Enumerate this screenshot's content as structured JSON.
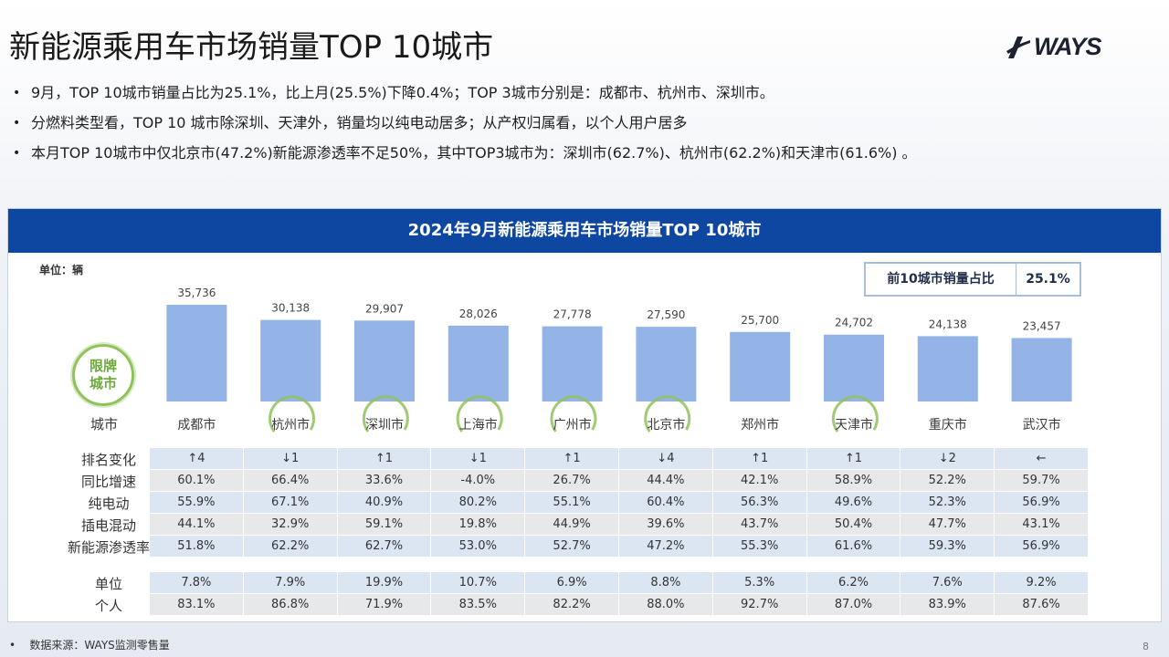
{
  "title": "新能源乘用车市场销量TOP 10城市",
  "logo": {
    "text": "WAYS"
  },
  "bullets": [
    "9月，TOP 10城市销量占比为25.1%，比上月(25.5%)下降0.4%；TOP 3城市分别是：成都市、杭州市、深圳市。",
    "分燃料类型看，TOP 10 城市除深圳、天津外，销量均以纯电动居多；从产权归属看，以个人用户居多",
    "本月TOP 10城市中仅北京市(47.2%)新能源渗透率不足50%，其中TOP3城市为：深圳市(62.7%)、杭州市(62.2%)和天津市(61.6%) 。"
  ],
  "panel": {
    "header": "2024年9月新能源乘用车市场销量TOP  10城市",
    "unit": "单位：辆",
    "ratio_label": "前10城市销量占比",
    "ratio_value": "25.1%",
    "restrict_label_line1": "限牌",
    "restrict_label_line2": "城市"
  },
  "chart_data": {
    "type": "bar",
    "categories": [
      "成都市",
      "杭州市",
      "深圳市",
      "上海市",
      "广州市",
      "北京市",
      "郑州市",
      "天津市",
      "重庆市",
      "武汉市"
    ],
    "values": [
      35736,
      30138,
      29907,
      28026,
      27778,
      27590,
      25700,
      24702,
      24138,
      23457
    ],
    "value_labels": [
      "35,736",
      "30,138",
      "29,907",
      "28,026",
      "27,778",
      "27,590",
      "25,700",
      "24,702",
      "24,138",
      "23,457"
    ],
    "restricted": [
      false,
      true,
      true,
      true,
      true,
      true,
      false,
      true,
      false,
      false
    ],
    "bar_color": "#94b4e8",
    "category_axis_label": "城市"
  },
  "table": {
    "rows": [
      {
        "label": "排名变化",
        "style": "blue",
        "values": [
          "↑4",
          "↓1",
          "↑1",
          "↓1",
          "↑1",
          "↓4",
          "↑1",
          "↑1",
          "↓2",
          "←"
        ]
      },
      {
        "label": "同比增速",
        "style": "gray",
        "values": [
          "60.1%",
          "66.4%",
          "33.6%",
          "-4.0%",
          "26.7%",
          "44.4%",
          "42.1%",
          "58.9%",
          "52.2%",
          "59.7%"
        ]
      },
      {
        "label": "纯电动",
        "style": "blue",
        "values": [
          "55.9%",
          "67.1%",
          "40.9%",
          "80.2%",
          "55.1%",
          "60.4%",
          "56.3%",
          "49.6%",
          "52.3%",
          "56.9%"
        ]
      },
      {
        "label": "插电混动",
        "style": "gray",
        "values": [
          "44.1%",
          "32.9%",
          "59.1%",
          "19.8%",
          "44.9%",
          "39.6%",
          "43.7%",
          "50.4%",
          "47.7%",
          "43.1%"
        ]
      },
      {
        "label": "新能源渗透率",
        "style": "blue",
        "values": [
          "51.8%",
          "62.2%",
          "62.7%",
          "53.0%",
          "52.7%",
          "47.2%",
          "55.3%",
          "61.6%",
          "59.3%",
          "56.9%"
        ]
      },
      {
        "label": "单位",
        "style": "blue",
        "values": [
          "7.8%",
          "7.9%",
          "19.9%",
          "10.7%",
          "6.9%",
          "8.8%",
          "5.3%",
          "6.2%",
          "7.6%",
          "9.2%"
        ]
      },
      {
        "label": "个人",
        "style": "gray",
        "values": [
          "83.1%",
          "86.8%",
          "71.9%",
          "83.5%",
          "82.2%",
          "88.0%",
          "92.7%",
          "87.0%",
          "83.9%",
          "87.6%"
        ]
      }
    ]
  },
  "footer": {
    "source": "数据来源：WAYS监测零售量",
    "page": "8"
  },
  "colors": {
    "header_bg": "#0d47a1",
    "restrict_green": "#8fc25a"
  }
}
